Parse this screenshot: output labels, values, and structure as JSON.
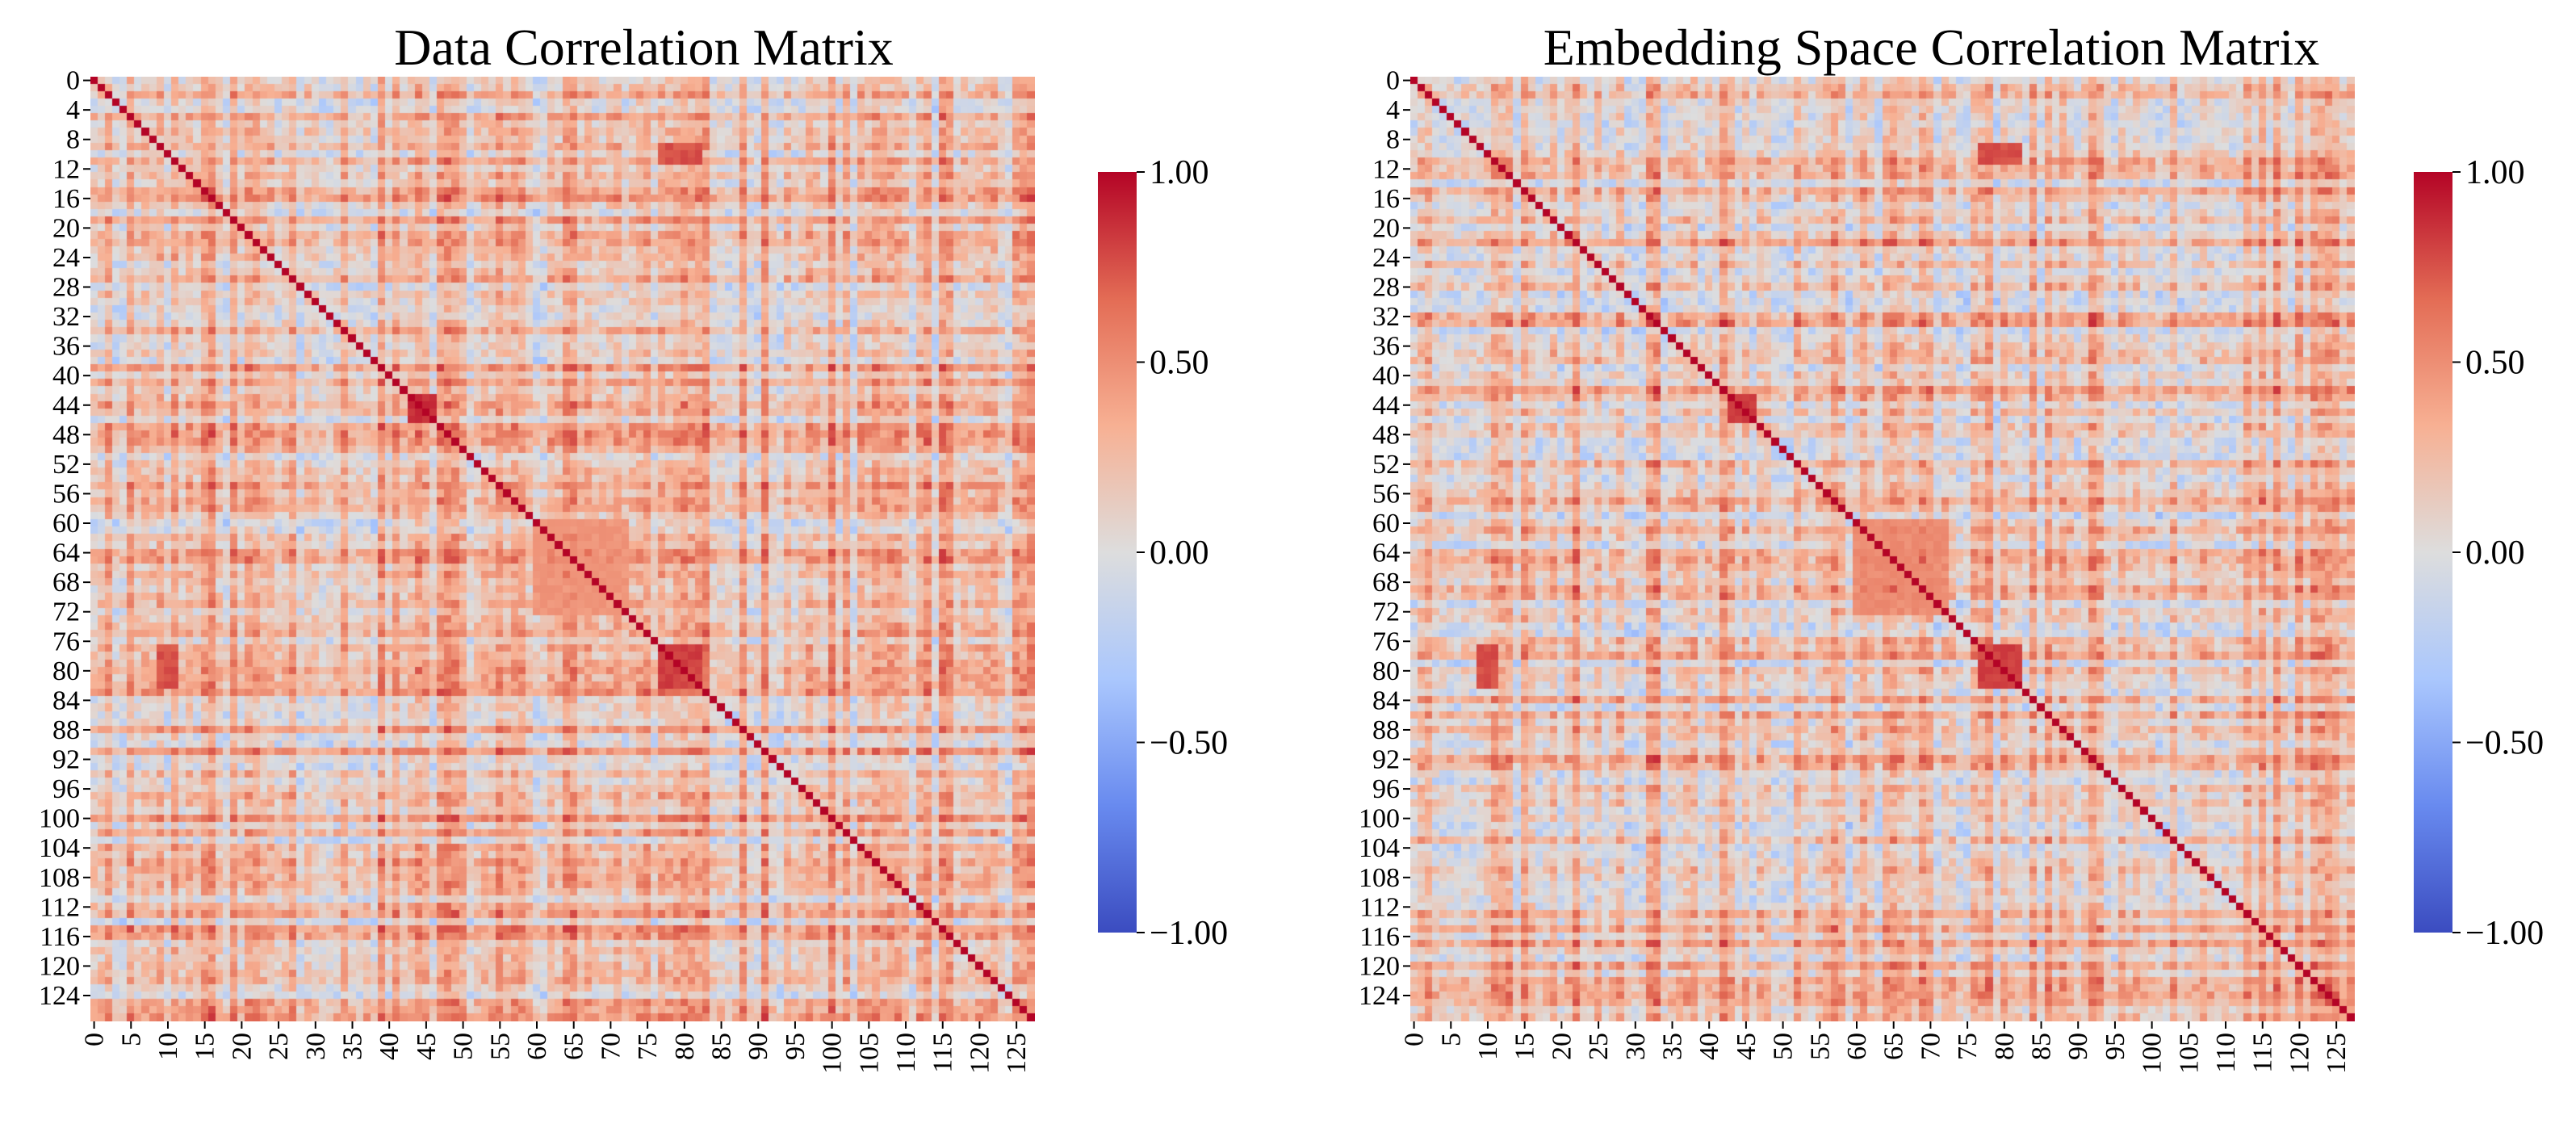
{
  "figure": {
    "panels": [
      {
        "title": "Data Correlation Matrix",
        "seed": 11
      },
      {
        "title": "Embedding Space Correlation Matrix",
        "seed": 23
      }
    ],
    "colormap_stops": [
      "#3b4cc0",
      "#688aef",
      "#aac7fd",
      "#dddddd",
      "#f7b093",
      "#e36c55",
      "#b40426"
    ]
  },
  "chart_data": [
    {
      "type": "heatmap",
      "title": "Data Correlation Matrix",
      "size": 128,
      "vmin": -1.0,
      "vmax": 1.0,
      "y_tick_labels": [
        "0",
        "4",
        "8",
        "12",
        "16",
        "20",
        "24",
        "28",
        "32",
        "36",
        "40",
        "44",
        "48",
        "52",
        "56",
        "60",
        "64",
        "68",
        "72",
        "76",
        "80",
        "84",
        "88",
        "92",
        "96",
        "100",
        "104",
        "108",
        "112",
        "116",
        "120",
        "124"
      ],
      "x_tick_labels": [
        "0",
        "5",
        "10",
        "15",
        "20",
        "25",
        "30",
        "35",
        "40",
        "45",
        "50",
        "55",
        "60",
        "65",
        "70",
        "75",
        "80",
        "85",
        "90",
        "95",
        "100",
        "105",
        "110",
        "115",
        "120",
        "125"
      ],
      "colorbar_ticks": [
        "1.00",
        "0.50",
        "0.00",
        "−0.50",
        "−1.00"
      ],
      "colorbar_tick_values": [
        1.0,
        0.5,
        0.0,
        -0.5,
        -1.0
      ],
      "diagonal_value": 1.0,
      "block_structure": [
        {
          "rows": [
            43,
            46
          ],
          "cols": [
            43,
            46
          ],
          "approx_value": 0.85
        },
        {
          "rows": [
            77,
            82
          ],
          "cols": [
            77,
            82
          ],
          "approx_value": 0.8
        },
        {
          "rows": [
            9,
            11
          ],
          "cols": [
            77,
            82
          ],
          "approx_value": 0.75
        },
        {
          "rows": [
            60,
            72
          ],
          "cols": [
            60,
            72
          ],
          "approx_value": 0.45
        }
      ]
    },
    {
      "type": "heatmap",
      "title": "Embedding Space Correlation Matrix",
      "size": 128,
      "vmin": -1.0,
      "vmax": 1.0,
      "y_tick_labels": [
        "0",
        "4",
        "8",
        "12",
        "16",
        "20",
        "24",
        "28",
        "32",
        "36",
        "40",
        "44",
        "48",
        "52",
        "56",
        "60",
        "64",
        "68",
        "72",
        "76",
        "80",
        "84",
        "88",
        "92",
        "96",
        "100",
        "104",
        "108",
        "112",
        "116",
        "120",
        "124"
      ],
      "x_tick_labels": [
        "0",
        "5",
        "10",
        "15",
        "20",
        "25",
        "30",
        "35",
        "40",
        "45",
        "50",
        "55",
        "60",
        "65",
        "70",
        "75",
        "80",
        "85",
        "90",
        "95",
        "100",
        "105",
        "110",
        "115",
        "120",
        "125"
      ],
      "colorbar_ticks": [
        "1.00",
        "0.50",
        "0.00",
        "−0.50",
        "−1.00"
      ],
      "colorbar_tick_values": [
        1.0,
        0.5,
        0.0,
        -0.5,
        -1.0
      ],
      "diagonal_value": 1.0,
      "block_structure": [
        {
          "rows": [
            43,
            46
          ],
          "cols": [
            43,
            46
          ],
          "approx_value": 0.8
        },
        {
          "rows": [
            77,
            82
          ],
          "cols": [
            77,
            82
          ],
          "approx_value": 0.8
        },
        {
          "rows": [
            9,
            11
          ],
          "cols": [
            77,
            82
          ],
          "approx_value": 0.75
        },
        {
          "rows": [
            60,
            72
          ],
          "cols": [
            60,
            72
          ],
          "approx_value": 0.5
        }
      ]
    }
  ]
}
